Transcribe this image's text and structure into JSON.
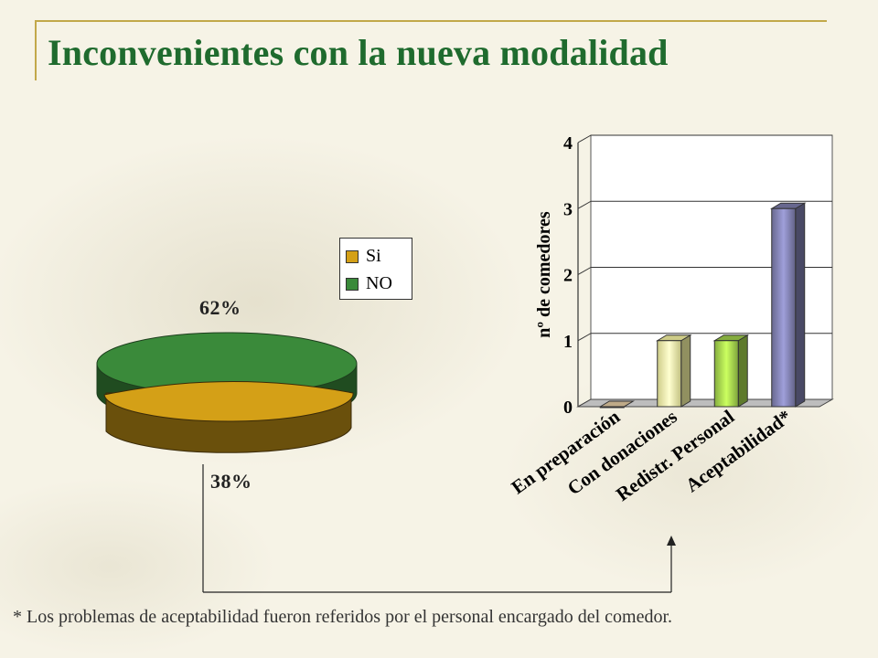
{
  "title": "Inconvenientes con la nueva modalidad",
  "footnote": "* Los problemas de aceptabilidad fueron referidos por el personal encargado del comedor.",
  "chart_data": [
    {
      "type": "pie",
      "title": "",
      "legend_position": "top-right",
      "slices": [
        {
          "label": "Si",
          "value": 38,
          "display": "38%",
          "color": "#d4a017"
        },
        {
          "label": "NO",
          "value": 62,
          "display": "62%",
          "color": "#3a8a3a"
        }
      ]
    },
    {
      "type": "bar",
      "title": "",
      "xlabel": "",
      "ylabel": "nº de comedores",
      "ylim": [
        0,
        4
      ],
      "yticks": [
        "0",
        "1",
        "2",
        "3",
        "4"
      ],
      "grid": true,
      "categories": [
        "En preparación",
        "Con donaciones",
        "Redistr. Personal",
        "Aceptabilidad*"
      ],
      "values": [
        0,
        1,
        1,
        3
      ],
      "colors": [
        "#e0c8a0",
        "#f2f0a0",
        "#9ccc4a",
        "#7a7aa8"
      ]
    }
  ]
}
